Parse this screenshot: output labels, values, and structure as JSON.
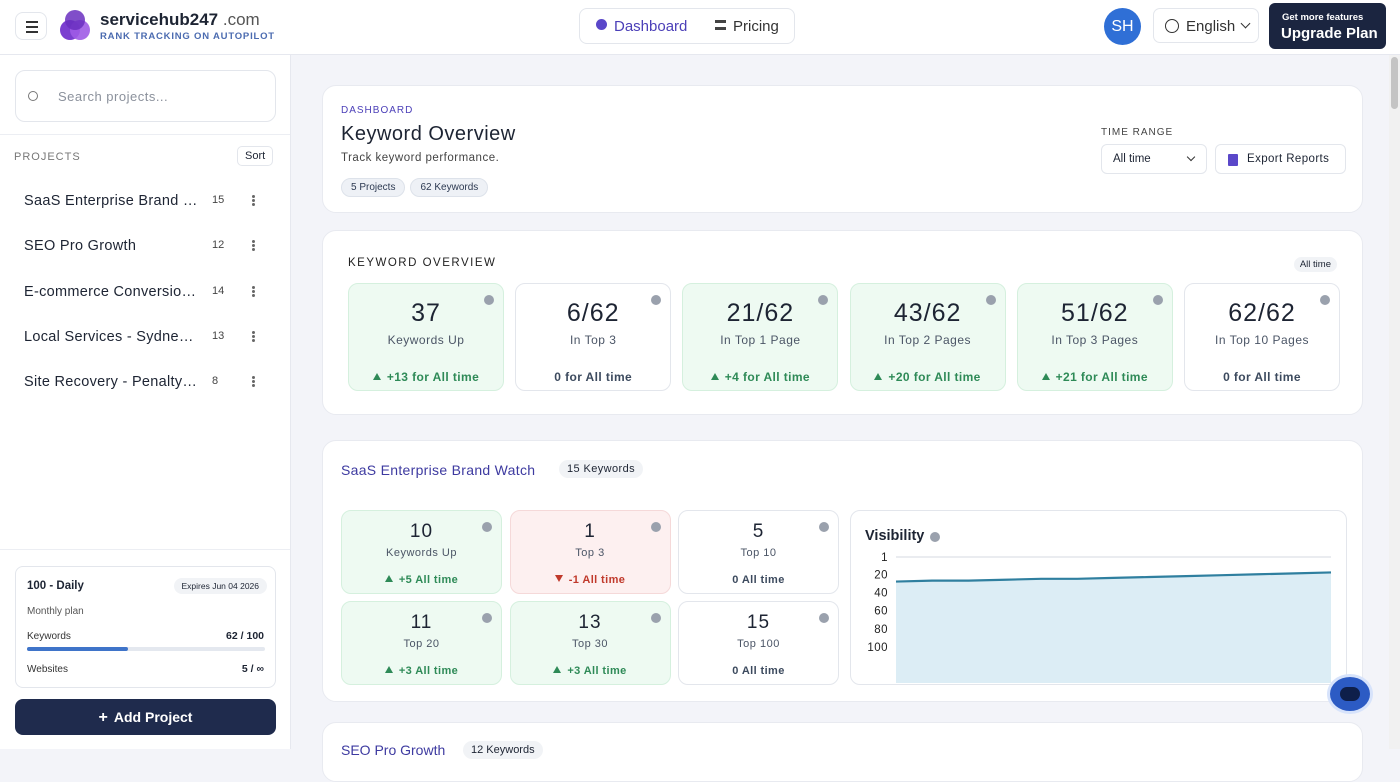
{
  "header": {
    "brand": "servicehub247",
    "domain": ".com",
    "tagline": "RANK TRACKING ON AUTOPILOT",
    "nav": [
      "Dashboard",
      "Pricing"
    ],
    "avatar": "SH",
    "language": "English",
    "upgrade_small": "Get more features",
    "upgrade": "Upgrade Plan"
  },
  "sidebar": {
    "search_placeholder": "Search projects...",
    "projects_label": "PROJECTS",
    "sort": "Sort",
    "projects": [
      {
        "name": "SaaS Enterprise Brand …",
        "count": "15"
      },
      {
        "name": "SEO Pro Growth",
        "count": "12"
      },
      {
        "name": "E-commerce Conversio…",
        "count": "14"
      },
      {
        "name": "Local Services - Sydne…",
        "count": "13"
      },
      {
        "name": "Site Recovery - Penalty…",
        "count": "8"
      }
    ],
    "plan": {
      "name": "100 - Daily",
      "expires": "Expires Jun 04 2026",
      "type": "Monthly plan",
      "keywords_label": "Keywords",
      "keywords": "62 / 100",
      "keywords_used": 62,
      "keywords_limit": 100,
      "websites_label": "Websites",
      "websites": "5 / ∞"
    },
    "add_project": "Add Project"
  },
  "overview_header": {
    "eyebrow": "DASHBOARD",
    "title": "Keyword Overview",
    "subtitle": "Track keyword performance.",
    "badges": [
      "5 Projects",
      "62 Keywords"
    ],
    "time_range_label": "TIME RANGE",
    "time_range": "All time",
    "export": "Export Reports"
  },
  "keyword_overview": {
    "title": "KEYWORD OVERVIEW",
    "badge": "All time",
    "cards": [
      {
        "value": "37",
        "label": "Keywords Up",
        "change": "+13 for All time",
        "trend": "up"
      },
      {
        "value": "6/62",
        "label": "In Top 3",
        "change": "0 for All time",
        "trend": "flat"
      },
      {
        "value": "21/62",
        "label": "In Top 1 Page",
        "change": "+4 for All time",
        "trend": "up"
      },
      {
        "value": "43/62",
        "label": "In Top 2 Pages",
        "change": "+20 for All time",
        "trend": "up"
      },
      {
        "value": "51/62",
        "label": "In Top 3 Pages",
        "change": "+21 for All time",
        "trend": "up"
      },
      {
        "value": "62/62",
        "label": "In Top 10 Pages",
        "change": "0 for All time",
        "trend": "flat"
      }
    ]
  },
  "projects": [
    {
      "name": "SaaS Enterprise Brand Watch",
      "badge": "15 Keywords",
      "cards": [
        {
          "value": "10",
          "label": "Keywords Up",
          "change": "+5 All time",
          "trend": "up"
        },
        {
          "value": "1",
          "label": "Top 3",
          "change": "-1 All time",
          "trend": "down"
        },
        {
          "value": "5",
          "label": "Top 10",
          "change": "0 All time",
          "trend": "flat"
        },
        {
          "value": "11",
          "label": "Top 20",
          "change": "+3 All time",
          "trend": "up"
        },
        {
          "value": "13",
          "label": "Top 30",
          "change": "+3 All time",
          "trend": "up"
        },
        {
          "value": "15",
          "label": "Top 100",
          "change": "0 All time",
          "trend": "flat"
        }
      ],
      "visibility": {
        "title": "Visibility",
        "ylim": [
          1,
          100
        ],
        "yticks": [
          1,
          20,
          40,
          60,
          80,
          100
        ],
        "color": "#2f7f9f",
        "values": [
          28,
          27,
          27,
          26,
          25,
          25,
          24,
          23,
          22,
          21,
          20,
          19,
          18
        ]
      }
    },
    {
      "name": "SEO Pro Growth",
      "badge": "12 Keywords"
    }
  ]
}
